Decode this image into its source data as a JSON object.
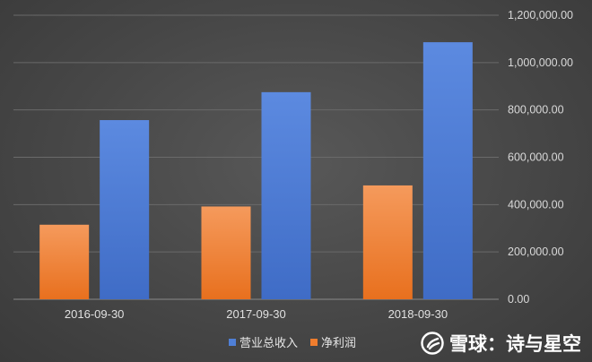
{
  "chart_data": {
    "type": "bar",
    "categories": [
      "2016-09-30",
      "2017-09-30",
      "2018-09-30"
    ],
    "series": [
      {
        "name": "净利润",
        "values": [
          315000,
          392000,
          481000
        ],
        "color": "#f07d2d"
      },
      {
        "name": "营业总收入",
        "values": [
          757000,
          875000,
          1086000
        ],
        "color": "#4f7fd6"
      }
    ],
    "ylim": [
      0,
      1200000
    ],
    "yticks": [
      "0.00",
      "200,000.00",
      "400,000.00",
      "600,000.00",
      "800,000.00",
      "1,000,000.00",
      "1,200,000.00"
    ],
    "ytick_values": [
      0,
      200000,
      400000,
      600000,
      800000,
      1000000,
      1200000
    ],
    "grid": true,
    "y_axis_side": "right",
    "legend_position": "bottom"
  },
  "legend": {
    "items": [
      {
        "label": "营业总收入",
        "color": "#4f7fd6"
      },
      {
        "label": "净利润",
        "color": "#f07d2d"
      }
    ]
  },
  "watermark": {
    "text": "雪球：诗与星空",
    "logo_icon": "snowball-logo-icon"
  }
}
